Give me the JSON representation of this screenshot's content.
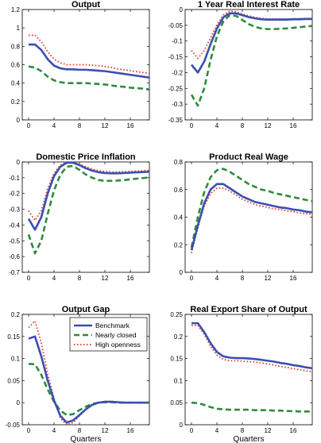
{
  "chart_data": [
    {
      "type": "line",
      "title": "Output",
      "xlabel": "",
      "ylabel": "",
      "xlim": [
        -1,
        19
      ],
      "ylim": [
        0,
        1.2
      ],
      "xticks": [
        0,
        4,
        8,
        12,
        16
      ],
      "yticks": [
        0,
        0.2,
        0.4,
        0.6,
        0.8,
        1,
        1.2
      ],
      "ytick_labels": [
        "0",
        "0.2",
        "0.4",
        "0.6",
        "0.8",
        "1",
        "1.2"
      ],
      "legend": false,
      "x": [
        0,
        1,
        2,
        3,
        4,
        5,
        6,
        7,
        8,
        9,
        10,
        11,
        12,
        13,
        14,
        15,
        16,
        17,
        18,
        19
      ],
      "series": [
        {
          "name": "Benchmark",
          "style": "solid",
          "color": "#3a4fb0",
          "values": [
            0.82,
            0.82,
            0.76,
            0.66,
            0.59,
            0.56,
            0.55,
            0.55,
            0.545,
            0.545,
            0.54,
            0.535,
            0.53,
            0.52,
            0.51,
            0.5,
            0.49,
            0.48,
            0.47,
            0.46
          ]
        },
        {
          "name": "Nearly closed",
          "style": "dashed",
          "color": "#2e8b3d",
          "values": [
            0.58,
            0.57,
            0.53,
            0.47,
            0.43,
            0.41,
            0.4,
            0.4,
            0.4,
            0.4,
            0.395,
            0.39,
            0.385,
            0.375,
            0.365,
            0.36,
            0.35,
            0.345,
            0.34,
            0.33
          ]
        },
        {
          "name": "High openness",
          "style": "dotted",
          "color": "#e23b2e",
          "values": [
            0.92,
            0.92,
            0.85,
            0.74,
            0.66,
            0.62,
            0.6,
            0.6,
            0.6,
            0.6,
            0.595,
            0.59,
            0.58,
            0.57,
            0.555,
            0.545,
            0.535,
            0.525,
            0.515,
            0.505
          ]
        }
      ]
    },
    {
      "type": "line",
      "title": "1 Year Real Interest Rate",
      "xlabel": "",
      "ylabel": "",
      "xlim": [
        -1,
        19
      ],
      "ylim": [
        -0.35,
        0
      ],
      "xticks": [
        0,
        4,
        8,
        12,
        16
      ],
      "yticks": [
        -0.35,
        -0.3,
        -0.25,
        -0.2,
        -0.15,
        -0.1,
        -0.05,
        0
      ],
      "ytick_labels": [
        "-0.35",
        "-0.3",
        "-0.25",
        "-0.2",
        "-0.15",
        "-0.1",
        "-0.05",
        "0"
      ],
      "legend": false,
      "x": [
        0,
        1,
        2,
        3,
        4,
        5,
        6,
        7,
        8,
        9,
        10,
        11,
        12,
        13,
        14,
        15,
        16,
        17,
        18,
        19
      ],
      "series": [
        {
          "name": "Benchmark",
          "style": "solid",
          "color": "#3a4fb0",
          "values": [
            -0.175,
            -0.2,
            -0.165,
            -0.11,
            -0.06,
            -0.025,
            -0.012,
            -0.012,
            -0.018,
            -0.024,
            -0.028,
            -0.031,
            -0.032,
            -0.032,
            -0.032,
            -0.032,
            -0.031,
            -0.031,
            -0.03,
            -0.03
          ]
        },
        {
          "name": "Nearly closed",
          "style": "dashed",
          "color": "#2e8b3d",
          "values": [
            -0.27,
            -0.305,
            -0.25,
            -0.16,
            -0.085,
            -0.038,
            -0.018,
            -0.02,
            -0.033,
            -0.046,
            -0.055,
            -0.06,
            -0.062,
            -0.062,
            -0.061,
            -0.06,
            -0.058,
            -0.056,
            -0.054,
            -0.052
          ]
        },
        {
          "name": "High openness",
          "style": "dotted",
          "color": "#e23b2e",
          "values": [
            -0.13,
            -0.155,
            -0.13,
            -0.09,
            -0.048,
            -0.018,
            -0.005,
            -0.007,
            -0.014,
            -0.02,
            -0.025,
            -0.028,
            -0.03,
            -0.03,
            -0.03,
            -0.03,
            -0.029,
            -0.029,
            -0.028,
            -0.028
          ]
        }
      ]
    },
    {
      "type": "line",
      "title": "Domestic Price Inflation",
      "xlabel": "",
      "ylabel": "",
      "xlim": [
        -1,
        19
      ],
      "ylim": [
        -0.7,
        0
      ],
      "xticks": [
        0,
        4,
        8,
        12,
        16
      ],
      "yticks": [
        -0.7,
        -0.6,
        -0.5,
        -0.4,
        -0.3,
        -0.2,
        -0.1,
        0
      ],
      "ytick_labels": [
        "-0.7",
        "-0.6",
        "-0.5",
        "-0.4",
        "-0.3",
        "-0.2",
        "-0.1",
        "0"
      ],
      "legend": false,
      "x": [
        0,
        1,
        2,
        3,
        4,
        5,
        6,
        7,
        8,
        9,
        10,
        11,
        12,
        13,
        14,
        15,
        16,
        17,
        18,
        19
      ],
      "series": [
        {
          "name": "Benchmark",
          "style": "solid",
          "color": "#3a4fb0",
          "values": [
            -0.36,
            -0.43,
            -0.35,
            -0.2,
            -0.09,
            -0.03,
            -0.005,
            -0.005,
            -0.02,
            -0.04,
            -0.055,
            -0.065,
            -0.07,
            -0.072,
            -0.072,
            -0.07,
            -0.068,
            -0.066,
            -0.064,
            -0.062
          ]
        },
        {
          "name": "Nearly closed",
          "style": "dashed",
          "color": "#2e8b3d",
          "values": [
            -0.46,
            -0.58,
            -0.5,
            -0.33,
            -0.18,
            -0.08,
            -0.03,
            -0.025,
            -0.05,
            -0.08,
            -0.1,
            -0.115,
            -0.12,
            -0.12,
            -0.118,
            -0.115,
            -0.11,
            -0.106,
            -0.102,
            -0.098
          ]
        },
        {
          "name": "High openness",
          "style": "dotted",
          "color": "#e23b2e",
          "values": [
            -0.31,
            -0.37,
            -0.31,
            -0.17,
            -0.07,
            -0.02,
            0,
            -0.002,
            -0.015,
            -0.03,
            -0.045,
            -0.055,
            -0.06,
            -0.063,
            -0.063,
            -0.062,
            -0.06,
            -0.058,
            -0.056,
            -0.054
          ]
        }
      ]
    },
    {
      "type": "line",
      "title": "Product Real Wage",
      "xlabel": "",
      "ylabel": "",
      "xlim": [
        -1,
        19
      ],
      "ylim": [
        0,
        0.8
      ],
      "xticks": [
        0,
        4,
        8,
        12,
        16
      ],
      "yticks": [
        0,
        0.2,
        0.4,
        0.6,
        0.8
      ],
      "ytick_labels": [
        "0",
        "0.2",
        "0.4",
        "0.6",
        "0.8"
      ],
      "legend": false,
      "x": [
        0,
        1,
        2,
        3,
        4,
        5,
        6,
        7,
        8,
        9,
        10,
        11,
        12,
        13,
        14,
        15,
        16,
        17,
        18,
        19
      ],
      "series": [
        {
          "name": "Benchmark",
          "style": "solid",
          "color": "#3a4fb0",
          "values": [
            0.16,
            0.34,
            0.5,
            0.6,
            0.64,
            0.64,
            0.61,
            0.58,
            0.55,
            0.53,
            0.51,
            0.5,
            0.49,
            0.48,
            0.47,
            0.465,
            0.455,
            0.45,
            0.44,
            0.435
          ]
        },
        {
          "name": "Nearly closed",
          "style": "dashed",
          "color": "#2e8b3d",
          "values": [
            0.18,
            0.4,
            0.58,
            0.69,
            0.74,
            0.75,
            0.73,
            0.7,
            0.67,
            0.64,
            0.62,
            0.6,
            0.59,
            0.575,
            0.565,
            0.555,
            0.545,
            0.535,
            0.525,
            0.515
          ]
        },
        {
          "name": "High openness",
          "style": "dotted",
          "color": "#e23b2e",
          "values": [
            0.14,
            0.32,
            0.48,
            0.57,
            0.61,
            0.61,
            0.59,
            0.56,
            0.53,
            0.51,
            0.49,
            0.48,
            0.47,
            0.46,
            0.455,
            0.445,
            0.44,
            0.43,
            0.425,
            0.42
          ]
        }
      ]
    },
    {
      "type": "line",
      "title": "Output Gap",
      "xlabel": "Quarters",
      "ylabel": "",
      "xlim": [
        -1,
        19
      ],
      "ylim": [
        -0.05,
        0.2
      ],
      "xticks": [
        0,
        4,
        8,
        12,
        16
      ],
      "yticks": [
        -0.05,
        0,
        0.05,
        0.1,
        0.15,
        0.2
      ],
      "ytick_labels": [
        "-0.05",
        "0",
        "0.05",
        "0.1",
        "0.15",
        "0.2"
      ],
      "legend": true,
      "legend_position": "top-right",
      "x": [
        0,
        1,
        2,
        3,
        4,
        5,
        6,
        7,
        8,
        9,
        10,
        11,
        12,
        13,
        14,
        15,
        16,
        17,
        18,
        19
      ],
      "series": [
        {
          "name": "Benchmark",
          "style": "solid",
          "color": "#3a4fb0",
          "values": [
            0.145,
            0.15,
            0.105,
            0.05,
            0.005,
            -0.03,
            -0.045,
            -0.04,
            -0.028,
            -0.015,
            -0.005,
            0,
            0.002,
            0.002,
            0.001,
            0,
            0,
            0,
            0,
            0
          ]
        },
        {
          "name": "Nearly closed",
          "style": "dashed",
          "color": "#2e8b3d",
          "values": [
            0.088,
            0.087,
            0.063,
            0.03,
            0.002,
            -0.018,
            -0.028,
            -0.026,
            -0.017,
            -0.009,
            -0.003,
            0,
            0.001,
            0.001,
            0,
            0,
            0,
            0,
            0,
            0
          ]
        },
        {
          "name": "High openness",
          "style": "dotted",
          "color": "#e23b2e",
          "values": [
            0.17,
            0.185,
            0.135,
            0.065,
            0.01,
            -0.035,
            -0.05,
            -0.045,
            -0.03,
            -0.016,
            -0.005,
            0,
            0.003,
            0.003,
            0.002,
            0.001,
            0,
            0,
            0,
            0
          ]
        }
      ]
    },
    {
      "type": "line",
      "title": "Real Export Share of Output",
      "xlabel": "Quarters",
      "ylabel": "",
      "xlim": [
        -1,
        19
      ],
      "ylim": [
        0,
        0.25
      ],
      "xticks": [
        0,
        4,
        8,
        12,
        16
      ],
      "yticks": [
        0,
        0.05,
        0.1,
        0.15,
        0.2,
        0.25
      ],
      "ytick_labels": [
        "0",
        "0.05",
        "0.1",
        "0.15",
        "0.2",
        "0.25"
      ],
      "legend": false,
      "x": [
        0,
        1,
        2,
        3,
        4,
        5,
        6,
        7,
        8,
        9,
        10,
        11,
        12,
        13,
        14,
        15,
        16,
        17,
        18,
        19
      ],
      "series": [
        {
          "name": "Benchmark",
          "style": "solid",
          "color": "#3a4fb0",
          "values": [
            0.23,
            0.23,
            0.21,
            0.185,
            0.165,
            0.155,
            0.152,
            0.151,
            0.151,
            0.15,
            0.149,
            0.147,
            0.145,
            0.143,
            0.14,
            0.138,
            0.135,
            0.133,
            0.13,
            0.128
          ]
        },
        {
          "name": "Nearly closed",
          "style": "dashed",
          "color": "#2e8b3d",
          "values": [
            0.05,
            0.049,
            0.045,
            0.04,
            0.036,
            0.035,
            0.034,
            0.034,
            0.034,
            0.034,
            0.033,
            0.033,
            0.033,
            0.032,
            0.032,
            0.031,
            0.031,
            0.03,
            0.03,
            0.03
          ]
        },
        {
          "name": "High openness",
          "style": "dotted",
          "color": "#e23b2e",
          "values": [
            0.225,
            0.225,
            0.205,
            0.178,
            0.158,
            0.148,
            0.145,
            0.145,
            0.144,
            0.143,
            0.142,
            0.14,
            0.138,
            0.135,
            0.132,
            0.13,
            0.127,
            0.125,
            0.122,
            0.12
          ]
        }
      ]
    }
  ]
}
